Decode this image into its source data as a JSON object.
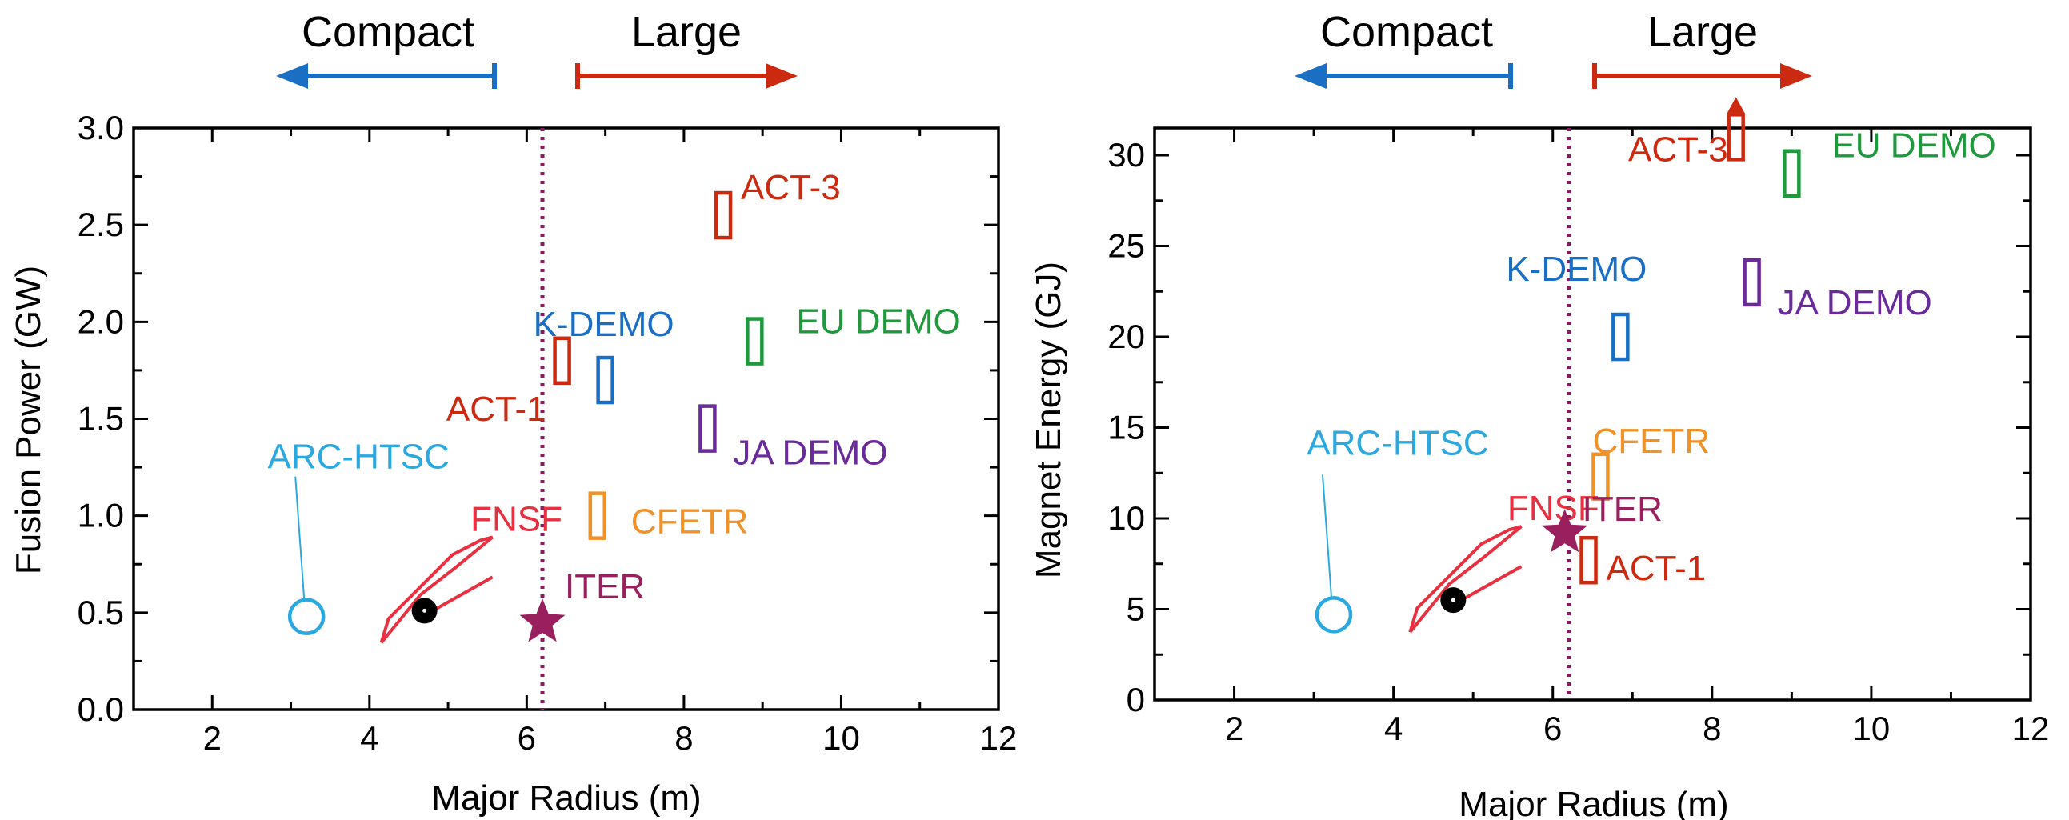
{
  "colors": {
    "compact": "#1a6fc4",
    "large": "#cc2a10",
    "act": "#cc2a10",
    "kdemo": "#1a6fc4",
    "eudemo": "#1e9a3c",
    "jademo": "#6a2a9a",
    "cfetr": "#f0922a",
    "arc": "#2aa8e0",
    "fnsf": "#e83040",
    "iter": "#9a1f5e",
    "threshold": "#8a1a5e"
  },
  "arrows": {
    "compact_label": "Compact",
    "large_label": "Large"
  },
  "chart_data": [
    {
      "type": "scatter",
      "xlabel": "Major Radius (m)",
      "ylabel": "Fusion Power (GW)",
      "xlim": [
        1,
        12
      ],
      "ylim": [
        0,
        3
      ],
      "xticks": [
        2,
        4,
        6,
        8,
        10,
        12
      ],
      "yticks": [
        0.0,
        0.5,
        1.0,
        1.5,
        2.0,
        2.5,
        3.0
      ],
      "ytick_labels": [
        "0.0",
        "0.5",
        "1.0",
        "1.5",
        "2.0",
        "2.5",
        "3.0"
      ],
      "threshold_x": 6.2,
      "devices": [
        {
          "name": "ACT-3",
          "label": "ACT-3",
          "marker": "rect",
          "x": 8.5,
          "y": 2.55,
          "color_key": "act"
        },
        {
          "name": "K-DEMO",
          "label": "K-DEMO",
          "marker": "rect",
          "x": 7.0,
          "y": 1.7,
          "color_key": "kdemo"
        },
        {
          "name": "EU DEMO",
          "label": "EU DEMO",
          "marker": "rect",
          "x": 8.9,
          "y": 1.9,
          "color_key": "eudemo"
        },
        {
          "name": "ACT-1",
          "label": "ACT-1",
          "marker": "rect",
          "x": 6.45,
          "y": 1.8,
          "color_key": "act"
        },
        {
          "name": "JA DEMO",
          "label": "JA DEMO",
          "marker": "rect",
          "x": 8.3,
          "y": 1.45,
          "color_key": "jademo"
        },
        {
          "name": "CFETR",
          "label": "CFETR",
          "marker": "rect",
          "x": 6.9,
          "y": 1.0,
          "color_key": "cfetr"
        },
        {
          "name": "ARC-HTSC",
          "label": "ARC-HTSC",
          "marker": "circle",
          "x": 3.2,
          "y": 0.48,
          "color_key": "arc"
        },
        {
          "name": "FNSF",
          "label": "FNSF",
          "marker": "region",
          "x": 4.7,
          "y": 0.51,
          "color_key": "fnsf"
        },
        {
          "name": "ITER",
          "label": "ITER",
          "marker": "star",
          "x": 6.2,
          "y": 0.45,
          "color_key": "iter"
        }
      ]
    },
    {
      "type": "scatter",
      "xlabel": "Major Radius (m)",
      "ylabel": "Magnet Energy (GJ)",
      "xlim": [
        1,
        12
      ],
      "ylim": [
        0,
        31.5
      ],
      "xticks": [
        2,
        4,
        6,
        8,
        10,
        12
      ],
      "yticks": [
        0,
        5,
        10,
        15,
        20,
        25,
        30
      ],
      "ytick_labels": [
        "0",
        "5",
        "10",
        "15",
        "20",
        "25",
        "30"
      ],
      "threshold_x": 6.2,
      "devices": [
        {
          "name": "ACT-3",
          "label": "ACT-3",
          "marker": "rect",
          "x": 8.3,
          "y": 31.0,
          "color_key": "act",
          "arrow_up": true
        },
        {
          "name": "EU DEMO",
          "label": "EU DEMO",
          "marker": "rect",
          "x": 9.0,
          "y": 29.0,
          "color_key": "eudemo"
        },
        {
          "name": "K-DEMO",
          "label": "K-DEMO",
          "marker": "rect",
          "x": 6.85,
          "y": 20.0,
          "color_key": "kdemo"
        },
        {
          "name": "JA DEMO",
          "label": "JA DEMO",
          "marker": "rect",
          "x": 8.5,
          "y": 23.0,
          "color_key": "jademo"
        },
        {
          "name": "CFETR",
          "label": "CFETR",
          "marker": "rect",
          "x": 6.6,
          "y": 12.3,
          "color_key": "cfetr"
        },
        {
          "name": "ACT-1",
          "label": "ACT-1",
          "marker": "rect",
          "x": 6.45,
          "y": 7.7,
          "color_key": "act"
        },
        {
          "name": "ARC-HTSC",
          "label": "ARC-HTSC",
          "marker": "circle",
          "x": 3.25,
          "y": 4.7,
          "color_key": "arc"
        },
        {
          "name": "FNSF",
          "label": "FNSF",
          "marker": "region",
          "x": 4.75,
          "y": 5.5,
          "color_key": "fnsf"
        },
        {
          "name": "ITER",
          "label": "ITER",
          "marker": "star",
          "x": 6.15,
          "y": 9.2,
          "color_key": "iter"
        }
      ]
    }
  ]
}
